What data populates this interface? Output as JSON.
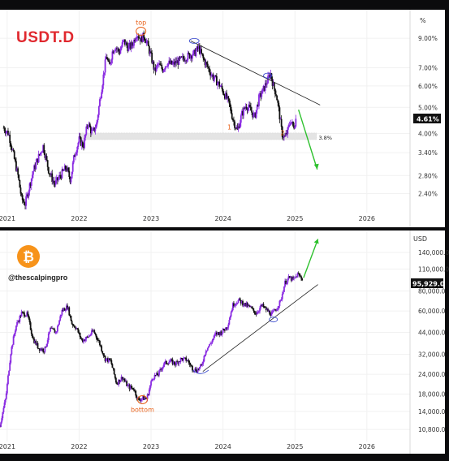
{
  "colors": {
    "up": "#8a2be2",
    "down": "#111111",
    "title_red": "#e0282e",
    "annotation_orange": "#e8611a",
    "arrow_green": "#2ec12e",
    "btc_orange": "#f7931a"
  },
  "usdt_panel": {
    "title": "USDT.D",
    "handle": "",
    "percent_label": "%",
    "price_badge": "4.61%",
    "level_label": "3.8%",
    "annotations": {
      "top": "top",
      "one": "1",
      "two": "2"
    }
  },
  "btc_panel": {
    "handle": "@thescalpingpro",
    "currency_label": "USD",
    "price_badge": "95,929.0",
    "annotations": {
      "bottom": "bottom"
    },
    "logo_icon": "bitcoin-icon"
  },
  "chart_data": [
    {
      "type": "candlestick",
      "title": "USDT.D",
      "y_scale": "log",
      "ylim": [
        2.1,
        11.0
      ],
      "y_ticks": [
        "9.00%",
        "7.00%",
        "6.00%",
        "5.00%",
        "4.00%",
        "3.40%",
        "2.80%",
        "2.40%"
      ],
      "y_tick_values": [
        9.0,
        7.0,
        6.0,
        5.0,
        4.0,
        3.4,
        2.8,
        2.4
      ],
      "x_ticks": [
        "2021",
        "2022",
        "2023",
        "2024",
        "2025",
        "2026"
      ],
      "x_tick_years": [
        2021,
        2022,
        2023,
        2024,
        2025,
        2026
      ],
      "xlim": [
        2020.9,
        2026.6
      ],
      "series": [
        {
          "x": [
            2020.95,
            2021.02,
            2021.08,
            2021.15,
            2021.2,
            2021.25,
            2021.3,
            2021.36,
            2021.42,
            2021.5,
            2021.58,
            2021.66,
            2021.74,
            2021.82,
            2021.88,
            2021.93,
            2022.0,
            2022.06,
            2022.12,
            2022.18,
            2022.24,
            2022.3,
            2022.34,
            2022.38,
            2022.42,
            2022.46,
            2022.5,
            2022.56,
            2022.62,
            2022.68,
            2022.74,
            2022.8,
            2022.86,
            2022.9,
            2022.94,
            2023.0,
            2023.05,
            2023.1,
            2023.16,
            2023.22,
            2023.3,
            2023.38,
            2023.46,
            2023.54,
            2023.6,
            2023.66,
            2023.72,
            2023.78,
            2023.84,
            2023.9,
            2023.96,
            2024.02,
            2024.08,
            2024.14,
            2024.2,
            2024.26,
            2024.32,
            2024.38,
            2024.44,
            2024.5,
            2024.56,
            2024.62,
            2024.66,
            2024.7,
            2024.74,
            2024.78,
            2024.82,
            2024.86,
            2024.9,
            2024.94,
            2024.98,
            2025.02
          ],
          "values": [
            4.2,
            4.0,
            3.4,
            2.8,
            2.3,
            2.2,
            2.5,
            2.9,
            3.2,
            3.6,
            2.9,
            2.6,
            2.8,
            3.0,
            2.7,
            3.3,
            3.8,
            3.6,
            4.4,
            4.0,
            4.3,
            5.6,
            6.6,
            7.8,
            7.0,
            8.0,
            8.4,
            8.0,
            8.8,
            8.3,
            8.5,
            9.4,
            8.9,
            9.2,
            8.7,
            7.7,
            6.8,
            7.2,
            6.9,
            7.3,
            7.2,
            7.4,
            7.6,
            7.8,
            7.9,
            8.3,
            7.6,
            7.1,
            6.6,
            6.3,
            6.0,
            5.6,
            5.2,
            4.5,
            4.1,
            4.7,
            5.1,
            4.9,
            4.6,
            5.4,
            5.8,
            6.3,
            6.7,
            6.0,
            5.6,
            4.8,
            4.0,
            3.85,
            4.1,
            4.5,
            4.2,
            4.61
          ]
        }
      ]
    },
    {
      "type": "candlestick",
      "title": "",
      "y_scale": "log",
      "ylim": [
        9500,
        175000
      ],
      "y_ticks": [
        "140,000.0",
        "110,000.0",
        "80,000.0",
        "60,000.0",
        "44,000.0",
        "32,000.0",
        "24,000.0",
        "18,000.0",
        "14,000.0",
        "10,800.0"
      ],
      "y_tick_values": [
        140000,
        110000,
        80000,
        60000,
        44000,
        32000,
        24000,
        18000,
        14000,
        10800
      ],
      "x_ticks": [
        "2021",
        "2022",
        "2023",
        "2024",
        "2025",
        "2026"
      ],
      "x_tick_years": [
        2021,
        2022,
        2023,
        2024,
        2025,
        2026
      ],
      "xlim": [
        2020.9,
        2026.6
      ],
      "series": [
        {
          "x": [
            2020.9,
            2020.98,
            2021.05,
            2021.12,
            2021.2,
            2021.28,
            2021.36,
            2021.44,
            2021.52,
            2021.6,
            2021.68,
            2021.76,
            2021.84,
            2021.9,
            2021.96,
            2022.04,
            2022.12,
            2022.2,
            2022.28,
            2022.36,
            2022.44,
            2022.52,
            2022.6,
            2022.68,
            2022.76,
            2022.82,
            2022.88,
            2022.94,
            2023.02,
            2023.1,
            2023.18,
            2023.26,
            2023.34,
            2023.42,
            2023.5,
            2023.58,
            2023.64,
            2023.7,
            2023.76,
            2023.82,
            2023.9,
            2023.98,
            2024.06,
            2024.14,
            2024.22,
            2024.3,
            2024.38,
            2024.46,
            2024.54,
            2024.62,
            2024.68,
            2024.74,
            2024.8,
            2024.86,
            2024.92,
            2024.98,
            2025.04,
            2025.1
          ],
          "values": [
            11500,
            17000,
            33000,
            48000,
            58000,
            57000,
            40000,
            35000,
            34000,
            46000,
            44000,
            60000,
            64000,
            50000,
            47000,
            39000,
            41000,
            45000,
            38000,
            30000,
            29000,
            21000,
            23000,
            20000,
            19500,
            16500,
            17000,
            16800,
            23000,
            24000,
            28000,
            29000,
            28000,
            30000,
            29500,
            26000,
            25500,
            27000,
            34000,
            37000,
            43000,
            44000,
            48000,
            66000,
            70000,
            66000,
            63000,
            58000,
            65000,
            60000,
            57000,
            62000,
            69000,
            90000,
            97000,
            94000,
            102000,
            95929
          ]
        }
      ]
    }
  ]
}
